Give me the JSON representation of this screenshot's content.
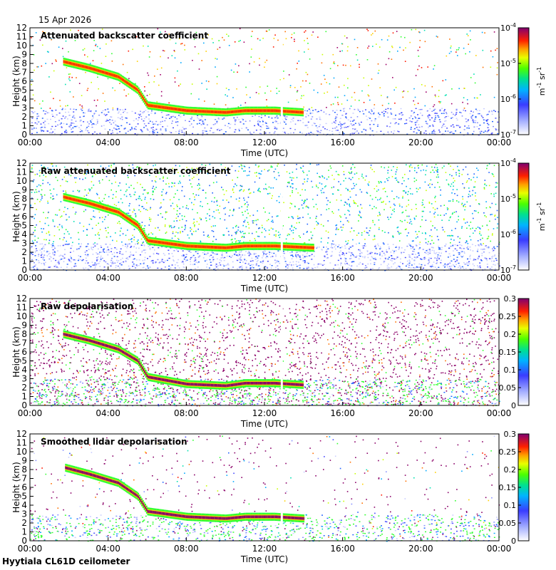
{
  "header": {
    "date": "15 Apr 2026"
  },
  "footer": {
    "site": "Hyytiala CL61D ceilometer"
  },
  "chart_data": [
    {
      "type": "heatmap",
      "title": "Attenuated backscatter coefficient",
      "xlabel": "Time (UTC)",
      "ylabel": "Height (km)",
      "x_ticks": [
        "00:00",
        "04:00",
        "08:00",
        "12:00",
        "16:00",
        "20:00",
        "00:00"
      ],
      "y_ticks": [
        0,
        1,
        2,
        3,
        4,
        5,
        6,
        7,
        8,
        9,
        10,
        11,
        12
      ],
      "ylim": [
        0,
        12
      ],
      "xlim_hours": [
        0,
        24
      ],
      "colorbar": {
        "scale": "log",
        "ticks": [
          "10",
          "10",
          "10",
          "10"
        ],
        "exponents": [
          "-4",
          "-5",
          "-6",
          "-7"
        ],
        "unit": "m",
        "unit_exp": "-1",
        "unit2": "sr",
        "unit2_exp": "-1"
      },
      "layer": [
        [
          1.7,
          8.2
        ],
        [
          3,
          7.5
        ],
        [
          4.5,
          6.5
        ],
        [
          5.5,
          5
        ],
        [
          6,
          3.3
        ],
        [
          8,
          2.7
        ],
        [
          10,
          2.5
        ],
        [
          11,
          2.7
        ],
        [
          12.5,
          2.7
        ],
        [
          14,
          2.5
        ]
      ],
      "noise": "low"
    },
    {
      "type": "heatmap",
      "title": "Raw attenuated backscatter coefficient",
      "xlabel": "Time (UTC)",
      "ylabel": "Height (km)",
      "x_ticks": [
        "00:00",
        "04:00",
        "08:00",
        "12:00",
        "16:00",
        "20:00",
        "00:00"
      ],
      "y_ticks": [
        0,
        1,
        2,
        3,
        4,
        5,
        6,
        7,
        8,
        9,
        10,
        11,
        12
      ],
      "ylim": [
        0,
        12
      ],
      "xlim_hours": [
        0,
        24
      ],
      "colorbar": {
        "scale": "log",
        "ticks": [
          "10",
          "10",
          "10",
          "10"
        ],
        "exponents": [
          "-4",
          "-5",
          "-6",
          "-7"
        ],
        "unit": "m",
        "unit_exp": "-1",
        "unit2": "sr",
        "unit2_exp": "-1"
      },
      "layer": [
        [
          1.7,
          8.2
        ],
        [
          3,
          7.5
        ],
        [
          4.5,
          6.5
        ],
        [
          5.5,
          5
        ],
        [
          6,
          3.3
        ],
        [
          8,
          2.7
        ],
        [
          10,
          2.5
        ],
        [
          11,
          2.7
        ],
        [
          12.5,
          2.7
        ],
        [
          14.5,
          2.5
        ]
      ],
      "noise": "high"
    },
    {
      "type": "heatmap",
      "title": "Raw depolarisation",
      "xlabel": "Time (UTC)",
      "ylabel": "Height (km)",
      "x_ticks": [
        "00:00",
        "04:00",
        "08:00",
        "12:00",
        "16:00",
        "20:00",
        "00:00"
      ],
      "y_ticks": [
        0,
        1,
        2,
        3,
        4,
        5,
        6,
        7,
        8,
        9,
        10,
        11,
        12
      ],
      "ylim": [
        0,
        12
      ],
      "xlim_hours": [
        0,
        24
      ],
      "colorbar": {
        "scale": "linear",
        "ticks": [
          "0.3",
          "0.25",
          "0.2",
          "0.15",
          "0.1",
          "0.05",
          "0"
        ]
      },
      "layer": [
        [
          1.7,
          8
        ],
        [
          3,
          7.3
        ],
        [
          4.5,
          6.3
        ],
        [
          5.5,
          5
        ],
        [
          6,
          3.2
        ],
        [
          8,
          2.4
        ],
        [
          10,
          2.2
        ],
        [
          11,
          2.5
        ],
        [
          12.5,
          2.5
        ],
        [
          14,
          2.3
        ]
      ],
      "noise": "depol"
    },
    {
      "type": "heatmap",
      "title": "Smoothed lidar depolarisation",
      "xlabel": "Time (UTC)",
      "ylabel": "Height (km)",
      "x_ticks": [
        "00:00",
        "04:00",
        "08:00",
        "12:00",
        "16:00",
        "20:00",
        "00:00"
      ],
      "y_ticks": [
        0,
        1,
        2,
        3,
        4,
        5,
        6,
        7,
        8,
        9,
        10,
        11,
        12
      ],
      "ylim": [
        0,
        12
      ],
      "xlim_hours": [
        0,
        24
      ],
      "colorbar": {
        "scale": "linear",
        "ticks": [
          "0.3",
          "0.25",
          "0.2",
          "0.15",
          "0.1",
          "0.05",
          "0"
        ]
      },
      "layer": [
        [
          1.8,
          8.2
        ],
        [
          3,
          7.5
        ],
        [
          4.5,
          6.5
        ],
        [
          5.5,
          5
        ],
        [
          6,
          3.3
        ],
        [
          8,
          2.7
        ],
        [
          10,
          2.5
        ],
        [
          11,
          2.7
        ],
        [
          12.5,
          2.7
        ],
        [
          14,
          2.5
        ]
      ],
      "noise": "sparse"
    }
  ]
}
